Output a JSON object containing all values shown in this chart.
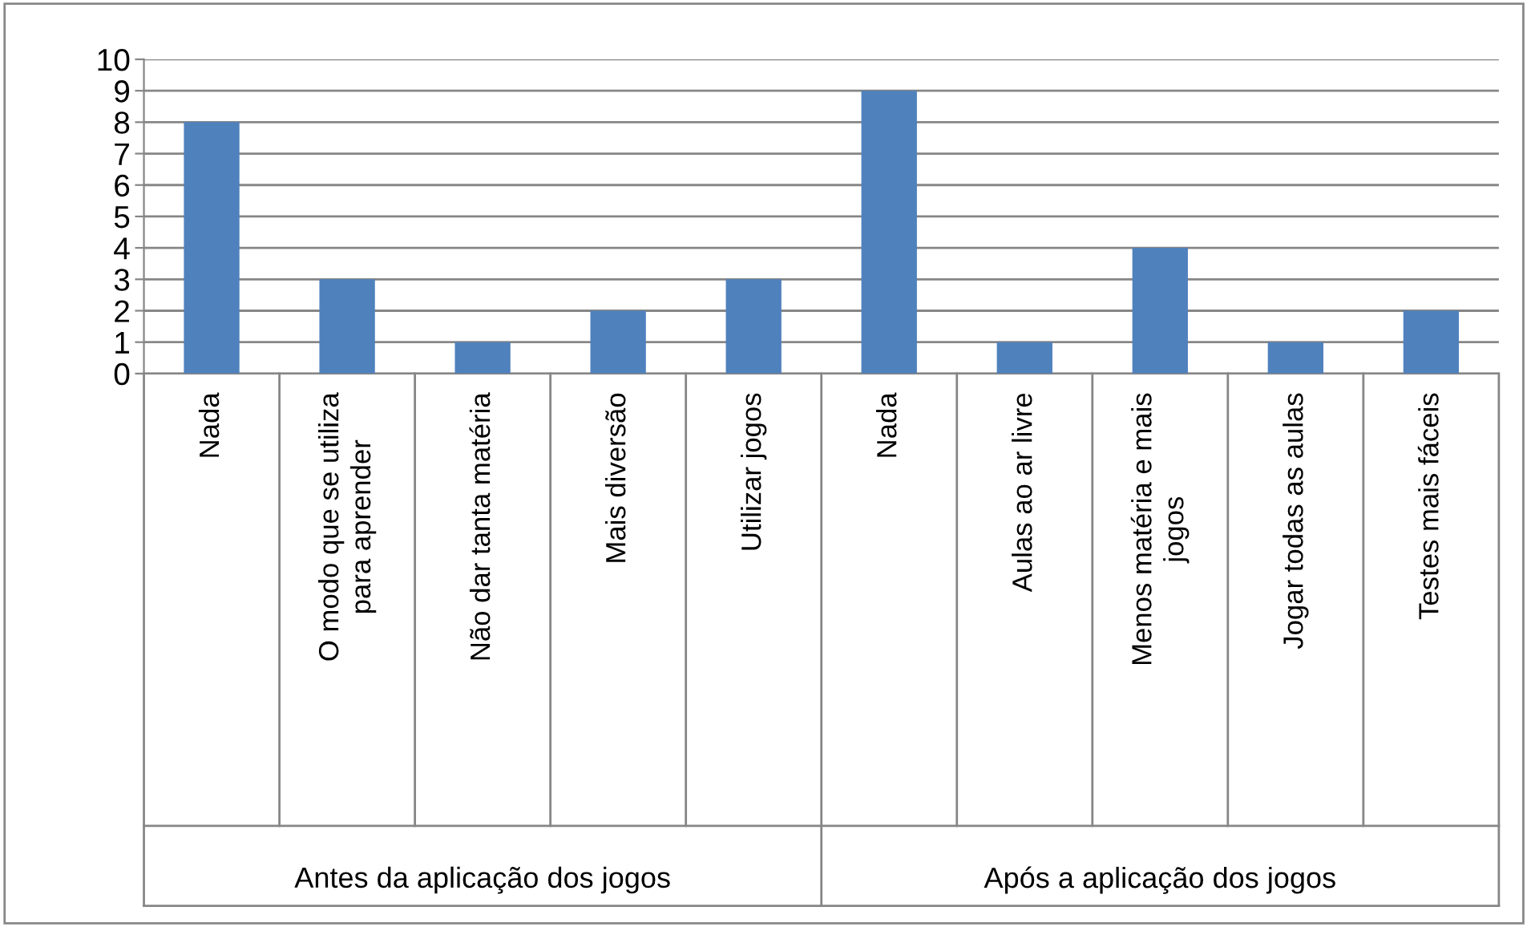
{
  "chart_data": {
    "type": "bar",
    "categories": [
      "Nada",
      "O modo que se utiliza\npara aprender",
      "Não dar tanta matéria",
      "Mais diversão",
      "Utilizar jogos",
      "Nada",
      "Aulas ao ar livre",
      "Menos matéria e mais\njogos",
      "Jogar todas as aulas",
      "Testes mais fáceis"
    ],
    "values": [
      8,
      3,
      1,
      2,
      3,
      9,
      1,
      4,
      1,
      2
    ],
    "color": "#4f81bd",
    "ylim": [
      0,
      10
    ],
    "yticks": [
      0,
      1,
      2,
      3,
      4,
      5,
      6,
      7,
      8,
      9,
      10
    ],
    "grid": "y",
    "legend": false,
    "annotations": [
      "Antes da aplicação dos jogos",
      "Após a aplicação dos jogos"
    ]
  }
}
